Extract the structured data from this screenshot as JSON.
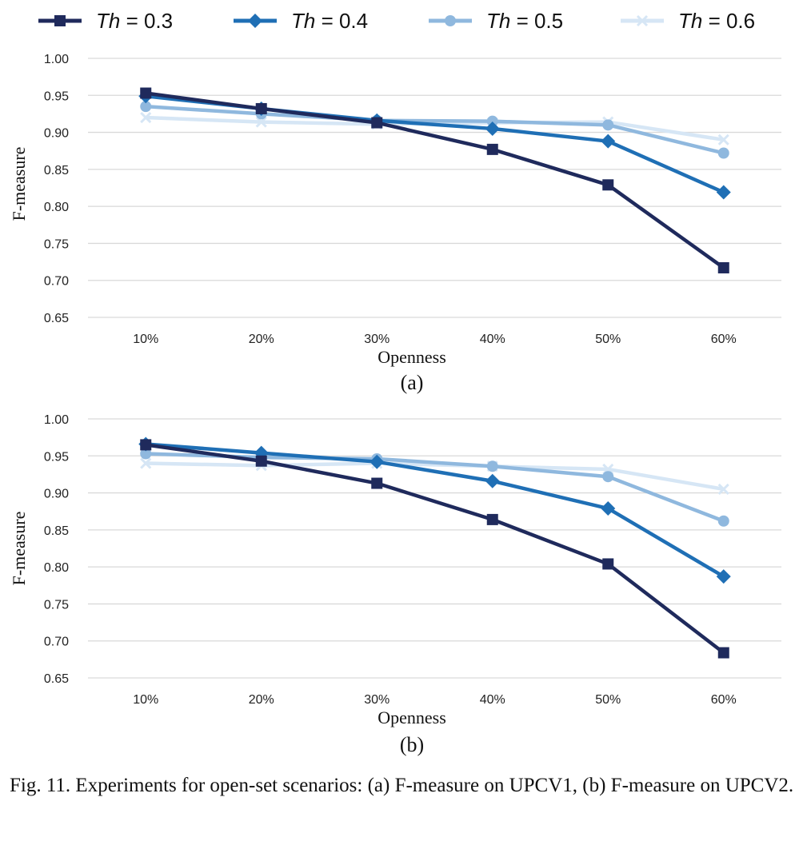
{
  "legend": [
    {
      "prefix": "Th",
      "value": " = 0.3",
      "color": "#1f2a5c",
      "marker": "square"
    },
    {
      "prefix": "Th",
      "value": " = 0.4",
      "color": "#1f6fb5",
      "marker": "diamond"
    },
    {
      "prefix": "Th",
      "value": " = 0.5",
      "color": "#8fb8de",
      "marker": "circle"
    },
    {
      "prefix": "Th",
      "value": " = 0.6",
      "color": "#d6e6f5",
      "marker": "x"
    }
  ],
  "chart_data": [
    {
      "type": "line",
      "panel_label": "(a)",
      "xlabel": "Openness",
      "ylabel": "F-measure",
      "categories": [
        "10%",
        "20%",
        "30%",
        "40%",
        "50%",
        "60%"
      ],
      "ylim": [
        0.65,
        1.0
      ],
      "yticks": [
        "1.00",
        "0.95",
        "0.90",
        "0.85",
        "0.80",
        "0.75",
        "0.70",
        "0.65"
      ],
      "grid": true,
      "series": [
        {
          "name": "Th = 0.3",
          "values": [
            0.953,
            0.932,
            0.913,
            0.877,
            0.829,
            0.717
          ]
        },
        {
          "name": "Th = 0.4",
          "values": [
            0.949,
            0.932,
            0.916,
            0.905,
            0.888,
            0.819
          ]
        },
        {
          "name": "Th = 0.5",
          "values": [
            0.935,
            0.925,
            0.916,
            0.915,
            0.91,
            0.872
          ]
        },
        {
          "name": "Th = 0.6",
          "values": [
            0.92,
            0.914,
            0.911,
            0.913,
            0.914,
            0.89
          ]
        }
      ]
    },
    {
      "type": "line",
      "panel_label": "(b)",
      "xlabel": "Openness",
      "ylabel": "F-measure",
      "categories": [
        "10%",
        "20%",
        "30%",
        "40%",
        "50%",
        "60%"
      ],
      "ylim": [
        0.65,
        1.0
      ],
      "yticks": [
        "1.00",
        "0.95",
        "0.90",
        "0.85",
        "0.80",
        "0.75",
        "0.70",
        "0.65"
      ],
      "grid": true,
      "series": [
        {
          "name": "Th = 0.3",
          "values": [
            0.965,
            0.943,
            0.913,
            0.864,
            0.804,
            0.684
          ]
        },
        {
          "name": "Th = 0.4",
          "values": [
            0.966,
            0.954,
            0.942,
            0.916,
            0.879,
            0.787
          ]
        },
        {
          "name": "Th = 0.5",
          "values": [
            0.953,
            0.948,
            0.946,
            0.936,
            0.922,
            0.862
          ]
        },
        {
          "name": "Th = 0.6",
          "values": [
            0.94,
            0.937,
            0.94,
            0.936,
            0.932,
            0.905
          ]
        }
      ]
    }
  ],
  "caption": "Fig. 11.  Experiments for open-set scenarios: (a) F-measure on UPCV1, (b) F-measure on UPCV2."
}
